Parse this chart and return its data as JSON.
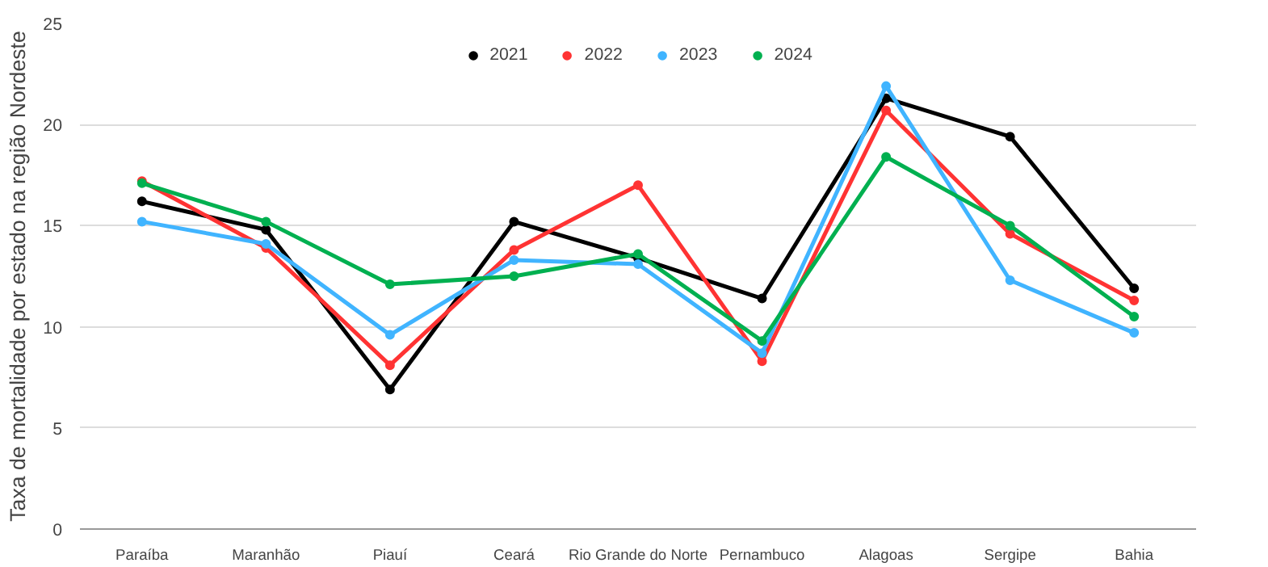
{
  "chart_data": {
    "type": "line",
    "ylabel": "Taxa de mortalidade por estado na região Nordeste",
    "categories": [
      "Paraíba",
      "Maranhão",
      "Piauí",
      "Ceará",
      "Rio Grande do Norte",
      "Pernambuco",
      "Alagoas",
      "Sergipe",
      "Bahia"
    ],
    "series": [
      {
        "name": "2021",
        "color": "#000000",
        "values": [
          16.2,
          14.8,
          6.9,
          15.2,
          13.4,
          11.4,
          21.3,
          19.4,
          11.9
        ]
      },
      {
        "name": "2022",
        "color": "#ff3333",
        "values": [
          17.2,
          13.9,
          8.1,
          13.8,
          17.0,
          8.3,
          20.7,
          14.6,
          11.3
        ]
      },
      {
        "name": "2023",
        "color": "#40b4ff",
        "values": [
          15.2,
          14.1,
          9.6,
          13.3,
          13.1,
          8.7,
          21.9,
          12.3,
          9.7
        ]
      },
      {
        "name": "2024",
        "color": "#00b050",
        "values": [
          17.1,
          15.2,
          12.1,
          12.5,
          13.6,
          9.3,
          18.4,
          15.0,
          10.5
        ]
      }
    ],
    "ylim": [
      0,
      25
    ],
    "yticks": [
      0,
      5,
      10,
      15,
      20,
      25
    ],
    "grid": "y",
    "legend": "top",
    "marker": "circle",
    "line_style": "solid"
  }
}
